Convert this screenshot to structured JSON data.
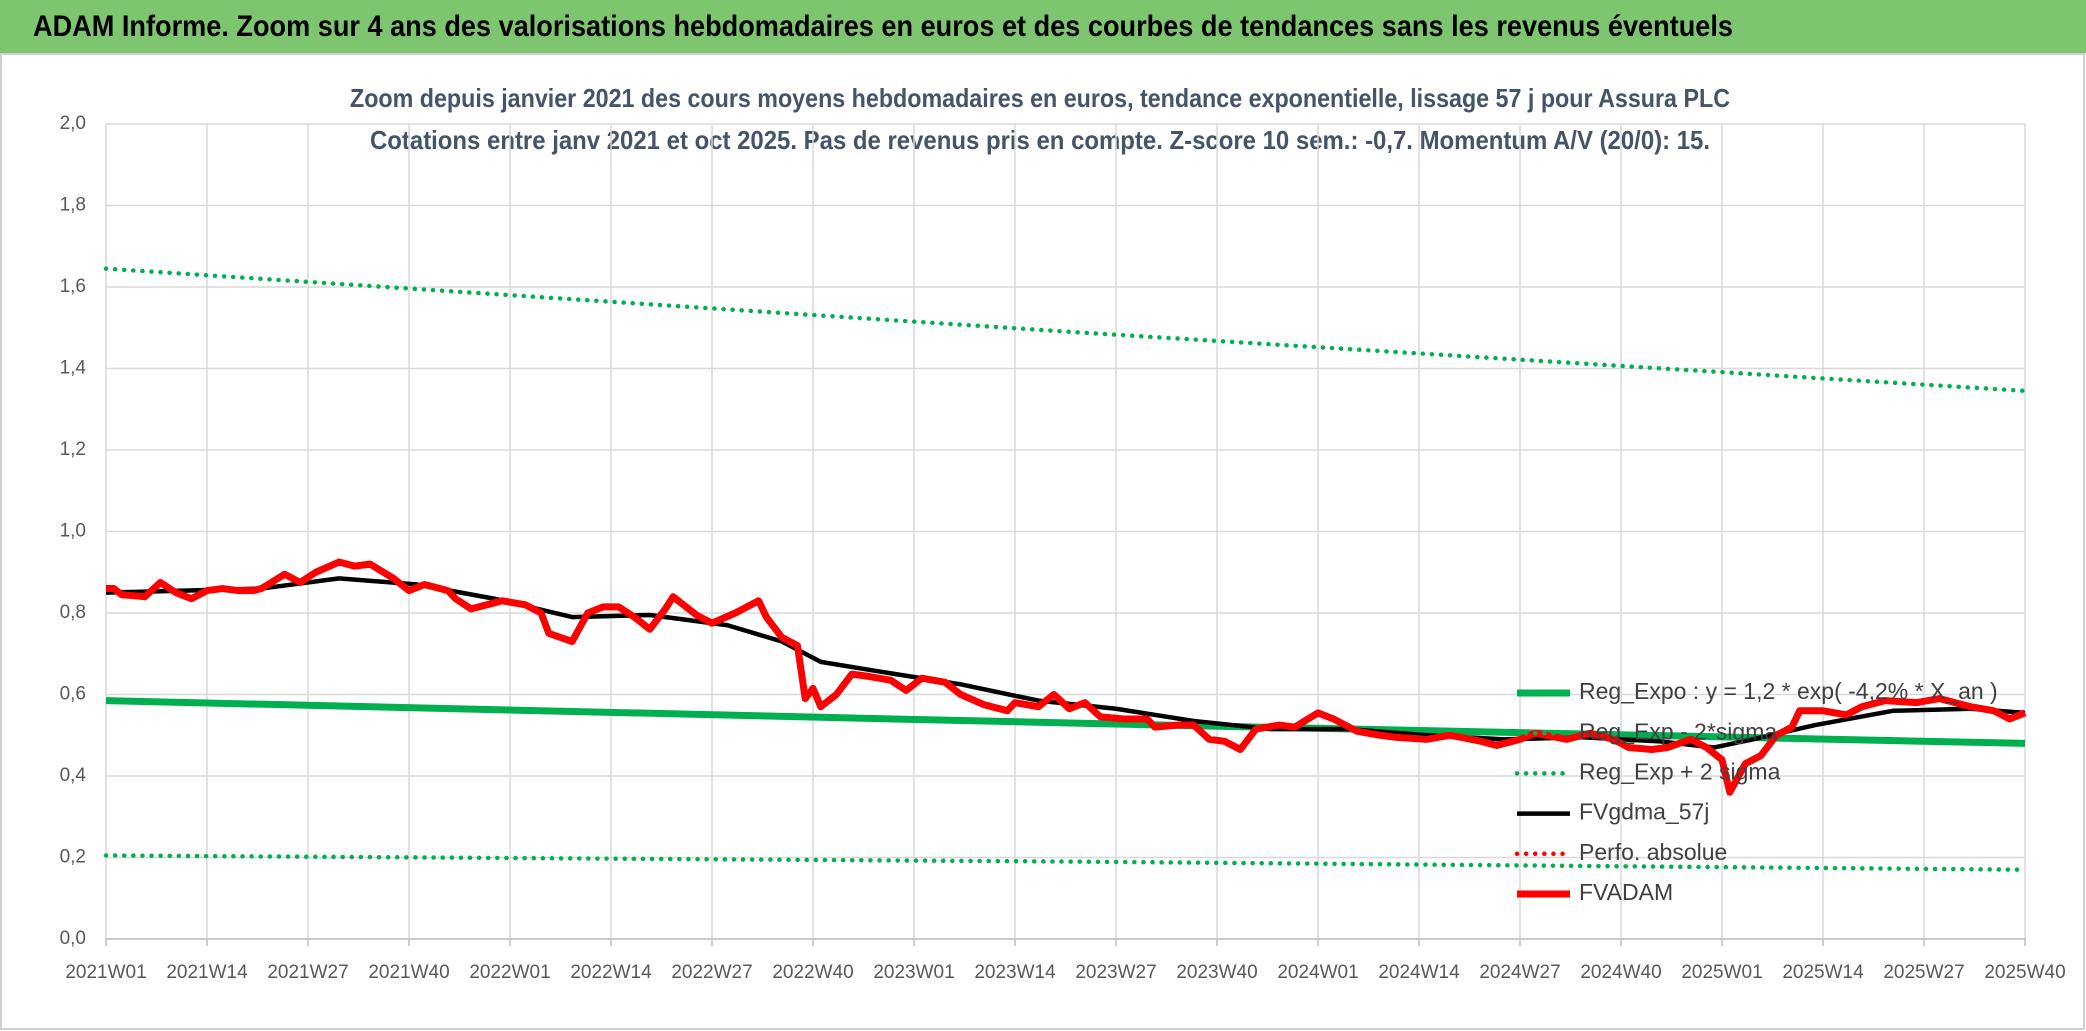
{
  "chart_data": {
    "type": "line",
    "title": "ADAM Informe. Zoom sur 4 ans des valorisations hebdomadaires en euros et des courbes de tendances sans les revenus éventuels",
    "subtitle": [
      "Zoom depuis janvier 2021 des cours moyens hebdomadaires en euros, tendance exponentielle, lissage 57 j pour Assura PLC",
      "Cotations entre janv 2021 et oct 2025. Pas de revenus pris en compte. Z-score 10 sem.: -0,7. Momentum A/V (20/0): 15."
    ],
    "xlim": [
      0,
      247
    ],
    "xticks": [
      {
        "value": 0,
        "label": "2021W01"
      },
      {
        "value": 13,
        "label": "2021W14"
      },
      {
        "value": 26,
        "label": "2021W27"
      },
      {
        "value": 39,
        "label": "2021W40"
      },
      {
        "value": 52,
        "label": "2022W01"
      },
      {
        "value": 65,
        "label": "2022W14"
      },
      {
        "value": 78,
        "label": "2022W27"
      },
      {
        "value": 91,
        "label": "2022W40"
      },
      {
        "value": 104,
        "label": "2023W01"
      },
      {
        "value": 117,
        "label": "2023W14"
      },
      {
        "value": 130,
        "label": "2023W27"
      },
      {
        "value": 143,
        "label": "2023W40"
      },
      {
        "value": 156,
        "label": "2024W01"
      },
      {
        "value": 169,
        "label": "2024W14"
      },
      {
        "value": 182,
        "label": "2024W27"
      },
      {
        "value": 195,
        "label": "2024W40"
      },
      {
        "value": 208,
        "label": "2025W01"
      },
      {
        "value": 221,
        "label": "2025W14"
      },
      {
        "value": 234,
        "label": "2025W27"
      },
      {
        "value": 247,
        "label": "2025W40"
      }
    ],
    "ylim": [
      0,
      2
    ],
    "yticks": [
      {
        "value": 0,
        "label": "0,0"
      },
      {
        "value": 0.2,
        "label": "0,2"
      },
      {
        "value": 0.4,
        "label": "0,4"
      },
      {
        "value": 0.6,
        "label": "0,6"
      },
      {
        "value": 0.8,
        "label": "0,8"
      },
      {
        "value": 1,
        "label": "1,0"
      },
      {
        "value": 1.2,
        "label": "1,2"
      },
      {
        "value": 1.4,
        "label": "1,4"
      },
      {
        "value": 1.6,
        "label": "1,6"
      },
      {
        "value": 1.8,
        "label": "1,8"
      },
      {
        "value": 2,
        "label": "2,0"
      }
    ],
    "grid": true,
    "legend": "right",
    "series": [
      {
        "name": "Reg_Expo : y = 1,2 * exp( -4,2% * X_an )",
        "color": "#00b050",
        "style": "thick",
        "x": [
          0,
          124,
          247
        ],
        "values": [
          0.585,
          0.53,
          0.48
        ]
      },
      {
        "name": "Reg_Exp - 2*sigma",
        "color": "#00b050",
        "style": "dotted",
        "x": [
          0,
          124,
          247
        ],
        "values": [
          0.205,
          0.19,
          0.17
        ]
      },
      {
        "name": "Reg_Exp + 2 sigma",
        "color": "#00b050",
        "style": "dotted",
        "x": [
          0,
          124,
          247
        ],
        "values": [
          1.645,
          1.49,
          1.345
        ]
      },
      {
        "name": "FVgdma_57j",
        "color": "#000000",
        "style": "solid",
        "x": [
          0,
          20,
          30,
          40,
          50,
          60,
          70,
          80,
          87,
          92,
          100,
          110,
          120,
          130,
          140,
          150,
          160,
          170,
          180,
          190,
          200,
          207,
          212,
          220,
          230,
          240,
          247
        ],
        "values": [
          0.85,
          0.86,
          0.885,
          0.87,
          0.835,
          0.79,
          0.795,
          0.77,
          0.73,
          0.68,
          0.655,
          0.625,
          0.585,
          0.565,
          0.535,
          0.515,
          0.515,
          0.5,
          0.49,
          0.495,
          0.485,
          0.47,
          0.49,
          0.525,
          0.56,
          0.565,
          0.555
        ]
      },
      {
        "name": "Perfo. absolue",
        "color": "#ff0000",
        "style": "dotted",
        "x": [],
        "values": []
      },
      {
        "name": "FVADAM",
        "color": "#ff0000",
        "style": "thick",
        "x": [
          0,
          1,
          2,
          5,
          7,
          9,
          11,
          13,
          15,
          17,
          19,
          20,
          23,
          25,
          27,
          30,
          32,
          34,
          37,
          39,
          41,
          44,
          45,
          47,
          50,
          51,
          54,
          56,
          57,
          60,
          62,
          64,
          66,
          68,
          70,
          72,
          73,
          76,
          78,
          81,
          84,
          85,
          87,
          89,
          90,
          91,
          92,
          94,
          96,
          98,
          101,
          103,
          105,
          108,
          110,
          113,
          116,
          117,
          120,
          122,
          124,
          126,
          128,
          131,
          134,
          135,
          138,
          140,
          142,
          144,
          146,
          148,
          151,
          153,
          156,
          158,
          161,
          164,
          166,
          170,
          173,
          177,
          179,
          182,
          184,
          188,
          191,
          194,
          196,
          199,
          201,
          204,
          206,
          208,
          209,
          211,
          213,
          215,
          217,
          218,
          221,
          224,
          226,
          229,
          233,
          236,
          240,
          243,
          245,
          247
        ],
        "values": [
          0.86,
          0.86,
          0.845,
          0.84,
          0.875,
          0.85,
          0.835,
          0.855,
          0.86,
          0.855,
          0.855,
          0.86,
          0.895,
          0.875,
          0.9,
          0.925,
          0.915,
          0.92,
          0.885,
          0.855,
          0.87,
          0.855,
          0.835,
          0.81,
          0.825,
          0.83,
          0.82,
          0.8,
          0.75,
          0.73,
          0.8,
          0.815,
          0.815,
          0.79,
          0.76,
          0.81,
          0.84,
          0.795,
          0.775,
          0.8,
          0.83,
          0.79,
          0.74,
          0.72,
          0.59,
          0.615,
          0.57,
          0.6,
          0.65,
          0.645,
          0.635,
          0.61,
          0.64,
          0.63,
          0.6,
          0.575,
          0.56,
          0.58,
          0.57,
          0.6,
          0.565,
          0.58,
          0.545,
          0.54,
          0.54,
          0.52,
          0.525,
          0.525,
          0.49,
          0.485,
          0.465,
          0.515,
          0.525,
          0.52,
          0.555,
          0.54,
          0.51,
          0.5,
          0.495,
          0.49,
          0.5,
          0.485,
          0.475,
          0.49,
          0.505,
          0.49,
          0.505,
          0.49,
          0.47,
          0.465,
          0.47,
          0.49,
          0.47,
          0.44,
          0.36,
          0.43,
          0.45,
          0.5,
          0.52,
          0.56,
          0.56,
          0.55,
          0.57,
          0.585,
          0.58,
          0.59,
          0.57,
          0.56,
          0.54,
          0.555
        ]
      }
    ]
  }
}
